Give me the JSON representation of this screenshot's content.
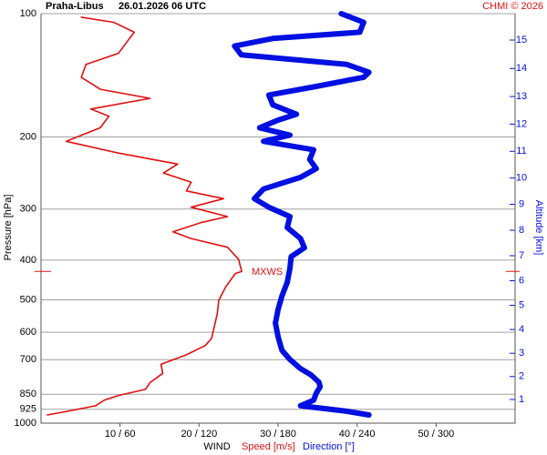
{
  "chart_data": {
    "type": "line",
    "title": "Praha-Libus",
    "subtitle": "26.01.2026 06 UTC",
    "credit": "CHMI © 2026",
    "ylabel": "Pressure [hPa]",
    "y2label": "Altitude [km]",
    "xlabel": "WIND",
    "log_y": true,
    "grid": true,
    "ylim": [
      1000,
      100
    ],
    "yticks": [
      100,
      200,
      300,
      400,
      500,
      600,
      700,
      850,
      925,
      1000
    ],
    "y2ticks": [
      1,
      2,
      3,
      4,
      5,
      6,
      7,
      8,
      9,
      10,
      11,
      12,
      13,
      14,
      15
    ],
    "xlim": [
      0,
      60
    ],
    "x2lim": [
      0,
      360
    ],
    "xticks": [
      {
        "value": 10,
        "label": "10 / 60"
      },
      {
        "value": 20,
        "label": "20 / 120"
      },
      {
        "value": 30,
        "label": "30 / 180"
      },
      {
        "value": 40,
        "label": "40 / 240"
      },
      {
        "value": 50,
        "label": "50 / 300"
      }
    ],
    "annotation": {
      "text": "MXWS",
      "pressure": 426
    },
    "series": [
      {
        "name": "Speed [m/s]",
        "color": "#e01010",
        "pressure": [
          955,
          935,
          907,
          879,
          856,
          827,
          796,
          756,
          718,
          681,
          646,
          620,
          584,
          541,
          501,
          464,
          431,
          426,
          398,
          372,
          354,
          341,
          324,
          313,
          297,
          283,
          271,
          258,
          245,
          233,
          219,
          205,
          190,
          178,
          171,
          161,
          153,
          143,
          133,
          125,
          117,
          111,
          105,
          102
        ],
        "values": [
          0.8,
          3.4,
          6.9,
          8.0,
          9.8,
          13.2,
          13.8,
          15.4,
          15.2,
          18.4,
          20.8,
          21.6,
          21.9,
          22.3,
          22.5,
          23.4,
          24.6,
          25.4,
          25.0,
          23.6,
          19.0,
          16.7,
          20.2,
          23.6,
          19.0,
          23.1,
          18.4,
          19.0,
          15.5,
          17.3,
          9.8,
          3.2,
          7.5,
          8.6,
          6.3,
          13.8,
          7.5,
          5.1,
          5.7,
          9.8,
          10.9,
          11.8,
          9.2,
          5.1
        ]
      },
      {
        "name": "Direction [°]",
        "color": "#0010e0",
        "axis": "x2",
        "pressure": [
          955,
          935,
          907,
          879,
          845,
          815,
          794,
          762,
          736,
          699,
          664,
          615,
          570,
          528,
          489,
          453,
          419,
          392,
          373,
          354,
          333,
          313,
          297,
          283,
          268,
          251,
          239,
          227,
          215,
          205,
          198,
          190,
          182,
          176,
          167,
          158,
          151,
          143,
          139,
          133,
          126,
          120,
          115,
          111,
          105,
          100
        ],
        "values": [
          249,
          232,
          197,
          207,
          209,
          212,
          211,
          205,
          197,
          189,
          183,
          180,
          178,
          180,
          183,
          187,
          189,
          190,
          200,
          197,
          187,
          189,
          173,
          162,
          169,
          197,
          209,
          204,
          207,
          169,
          189,
          166,
          180,
          194,
          176,
          173,
          207,
          245,
          249,
          232,
          152,
          147,
          176,
          242,
          245,
          228
        ]
      }
    ]
  }
}
